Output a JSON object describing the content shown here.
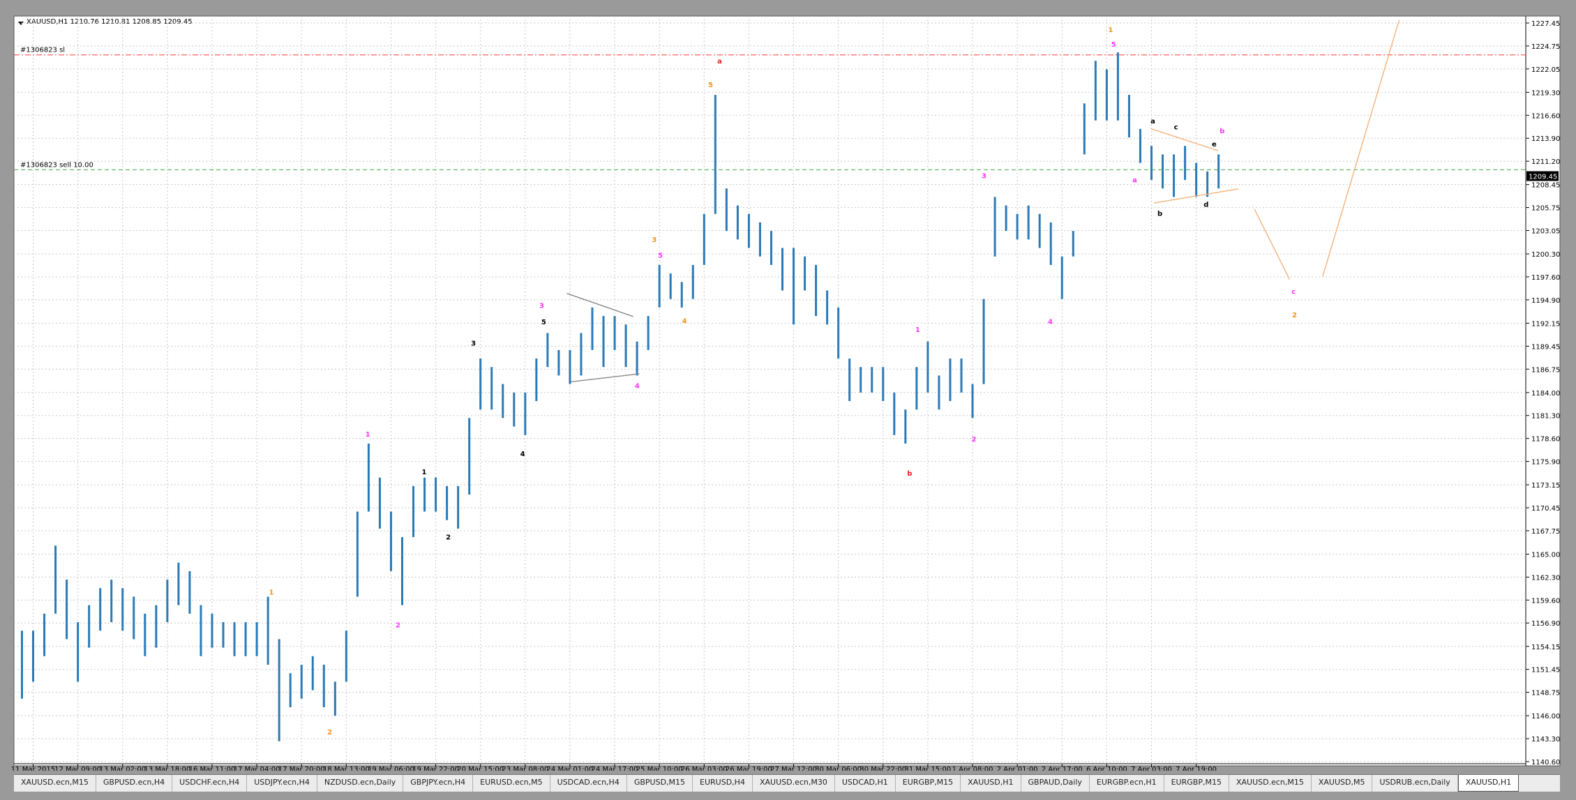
{
  "chart_data": {
    "type": "range",
    "title": "XAUUSD,H1  1210.76 1210.81 1208.85 1209.45",
    "color": "#2a7ab8",
    "categories": [
      null,
      "11 Mar 2015",
      null,
      null,
      null,
      "12 Mar 09:00",
      null,
      null,
      null,
      "13 Mar 02:00",
      null,
      null,
      null,
      "13 Mar 18:00",
      null,
      null,
      null,
      "16 Mar 11:00",
      null,
      null,
      null,
      "17 Mar 04:00",
      null,
      null,
      null,
      "17 Mar 20:00",
      null,
      null,
      null,
      "18 Mar 13:00",
      null,
      null,
      null,
      "19 Mar 06:00",
      null,
      null,
      null,
      "19 Mar 22:00",
      null,
      null,
      null,
      "20 Mar 15:00",
      null,
      null,
      null,
      "23 Mar 08:00",
      null,
      null,
      null,
      "24 Mar 01:00",
      null,
      null,
      null,
      "24 Mar 17:00",
      null,
      null,
      null,
      "25 Mar 10:00",
      null,
      null,
      null,
      "26 Mar 03:00",
      null,
      null,
      null,
      "26 Mar 19:00",
      null,
      null,
      null,
      "27 Mar 12:00",
      null,
      null,
      null,
      "30 Mar 06:00",
      null,
      null,
      null,
      "30 Mar 22:00",
      null,
      null,
      null,
      "31 Mar 15:00",
      null,
      null,
      null,
      "1 Apr 08:00",
      null,
      null,
      null,
      "2 Apr 01:00",
      null,
      null,
      null,
      "2 Apr 17:00",
      null,
      null,
      null,
      "6 Apr 10:00",
      null,
      null,
      null,
      "7 Apr 03:00",
      null,
      null,
      null,
      "7 Apr 19:00",
      null,
      null
    ],
    "high": [
      1156,
      1156,
      1158,
      1166,
      1162,
      1157,
      1159,
      1161,
      1162,
      1161,
      1160,
      1158,
      1159,
      1162,
      1164,
      1163,
      1159,
      1158,
      1157,
      1157,
      1157,
      1157,
      1160,
      1155,
      1151,
      1152,
      1153,
      1152,
      1150,
      1156,
      1170,
      1178,
      1174,
      1170,
      1167,
      1173,
      1174,
      1174,
      1173,
      1173,
      1181,
      1188,
      1187,
      1185,
      1184,
      1184,
      1188,
      1191,
      1189,
      1189,
      1191,
      1194,
      1193,
      1193,
      1192,
      1190,
      1193,
      1199,
      1198,
      1197,
      1199,
      1205,
      1219,
      1208,
      1206,
      1205,
      1204,
      1203,
      1201,
      1201,
      1200,
      1199,
      1196,
      1194,
      1188,
      1187,
      1187,
      1187,
      1184,
      1182,
      1187,
      1190,
      1186,
      1188,
      1188,
      1185,
      1195,
      1207,
      1206,
      1205,
      1206,
      1205,
      1204,
      1200,
      1203,
      1218,
      1223,
      1222,
      1224,
      1219,
      1215,
      1213,
      1212,
      1212,
      1213,
      1211,
      1210,
      1212
    ],
    "low": [
      1148,
      1150,
      1153,
      1158,
      1155,
      1150,
      1154,
      1156,
      1157,
      1156,
      1155,
      1153,
      1154,
      1157,
      1159,
      1158,
      1153,
      1154,
      1154,
      1153,
      1153,
      1153,
      1152,
      1143,
      1147,
      1148,
      1149,
      1147,
      1146,
      1150,
      1160,
      1170,
      1168,
      1163,
      1159,
      1167,
      1170,
      1170,
      1169,
      1168,
      1172,
      1182,
      1182,
      1181,
      1180,
      1179,
      1183,
      1187,
      1186,
      1185,
      1186,
      1189,
      1187,
      1189,
      1187,
      1186,
      1189,
      1194,
      1195,
      1194,
      1195,
      1199,
      1205,
      1203,
      1202,
      1201,
      1200,
      1199,
      1196,
      1192,
      1196,
      1193,
      1192,
      1188,
      1183,
      1184,
      1184,
      1183,
      1179,
      1178,
      1182,
      1184,
      1182,
      1183,
      1184,
      1181,
      1185,
      1200,
      1203,
      1202,
      1202,
      1201,
      1199,
      1195,
      1200,
      1212,
      1216,
      1216,
      1216,
      1214,
      1211,
      1209,
      1208,
      1207,
      1209,
      1207,
      1207,
      1208
    ],
    "ylim": [
      1140.6,
      1227.45
    ],
    "yticks": [
      {
        "value": 1140.6,
        "label": "1140.60"
      },
      {
        "value": 1143.3,
        "label": "1143.30"
      },
      {
        "value": 1146,
        "label": "1146.00"
      },
      1148.75,
      1151.45,
      1154.15,
      {
        "value": 1156.9,
        "label": "1156.90"
      },
      {
        "value": 1159.6,
        "label": "1159.60"
      },
      {
        "value": 1162.3,
        "label": "1162.30"
      },
      {
        "value": 1165,
        "label": "1165.00"
      },
      1167.75,
      1170.45,
      1173.15,
      {
        "value": 1175.9,
        "label": "1175.90"
      },
      {
        "value": 1178.6,
        "label": "1178.60"
      },
      {
        "value": 1181.3,
        "label": "1181.30"
      },
      {
        "value": 1184,
        "label": "1184.00"
      },
      1186.75,
      1189.45,
      1192.15,
      {
        "value": 1194.9,
        "label": "1194.90"
      },
      {
        "value": 1197.6,
        "label": "1197.60"
      },
      {
        "value": 1200.3,
        "label": "1200.30"
      },
      1203.05,
      1205.75,
      1208.45,
      {
        "value": 1211.2,
        "label": "1211.20"
      },
      {
        "value": 1213.9,
        "label": "1213.90"
      },
      {
        "value": 1216.6,
        "label": "1216.60"
      },
      {
        "value": 1219.3,
        "label": "1219.30"
      },
      1222.05,
      1224.75,
      1227.45
    ],
    "grid": true,
    "hlines": [
      {
        "label": "#1306823 sl",
        "value": 1223.7,
        "color": "#ff3b3b"
      },
      {
        "label": "#1306823 sell 10.00",
        "value": 1210.2,
        "color": "#3cb043"
      }
    ],
    "last_price": 1209.45,
    "annotations": [
      {
        "text": "a",
        "color": "#e8231e"
      },
      {
        "text": "b",
        "color": "#e8231e"
      },
      {
        "text": "1",
        "color": "#f7931e"
      },
      {
        "text": "2",
        "color": "#f7931e"
      },
      {
        "text": "3",
        "color": "#f7931e"
      },
      {
        "text": "4",
        "color": "#f7931e"
      },
      {
        "text": "5",
        "color": "#f7931e"
      },
      {
        "text": "1",
        "color": "#f7931e"
      },
      {
        "text": "2",
        "color": "#f7931e"
      },
      {
        "text": "1",
        "color": "#ff33ff"
      },
      {
        "text": "2",
        "color": "#ff33ff"
      },
      {
        "text": "3",
        "color": "#ff33ff"
      },
      {
        "text": "4",
        "color": "#ff33ff"
      },
      {
        "text": "5",
        "color": "#ff33ff"
      },
      {
        "text": "1",
        "color": "#ff33ff"
      },
      {
        "text": "2",
        "color": "#ff33ff"
      },
      {
        "text": "3",
        "color": "#ff33ff"
      },
      {
        "text": "4",
        "color": "#ff33ff"
      },
      {
        "text": "5",
        "color": "#ff33ff"
      },
      {
        "text": "a",
        "color": "#ff33ff"
      },
      {
        "text": "b",
        "color": "#ff33ff"
      },
      {
        "text": "c",
        "color": "#ff33ff"
      },
      {
        "text": "1",
        "color": "#000000"
      },
      {
        "text": "2",
        "color": "#000000"
      },
      {
        "text": "3",
        "color": "#000000"
      },
      {
        "text": "4",
        "color": "#000000"
      },
      {
        "text": "5",
        "color": "#000000"
      },
      {
        "text": "a",
        "color": "#000000"
      },
      {
        "text": "b",
        "color": "#000000"
      },
      {
        "text": "c",
        "color": "#000000"
      },
      {
        "text": "d",
        "color": "#000000"
      },
      {
        "text": "e",
        "color": "#000000"
      }
    ]
  },
  "tabs": [
    "XAUUSD.ecn,M15",
    "GBPUSD.ecn,H4",
    "USDCHF.ecn,H4",
    "USDJPY.ecn,H4",
    "NZDUSD.ecn,Daily",
    "GBPJPY.ecn,H4",
    "EURUSD.ecn,M5",
    "USDCAD.ecn,H4",
    "GBPUSD,M15",
    "EURUSD,H4",
    "XAUUSD.ecn,M30",
    "USDCAD,H1",
    "EURGBP,M15",
    "XAUUSD,H1",
    "GBPAUD,Daily",
    "EURGBP.ecn,H1",
    "EURGBP,M15",
    "XAUUSD.ecn,M15",
    "XAUUSD,M5",
    "USDRUB.ecn,Daily",
    "XAUUSD,H1"
  ]
}
